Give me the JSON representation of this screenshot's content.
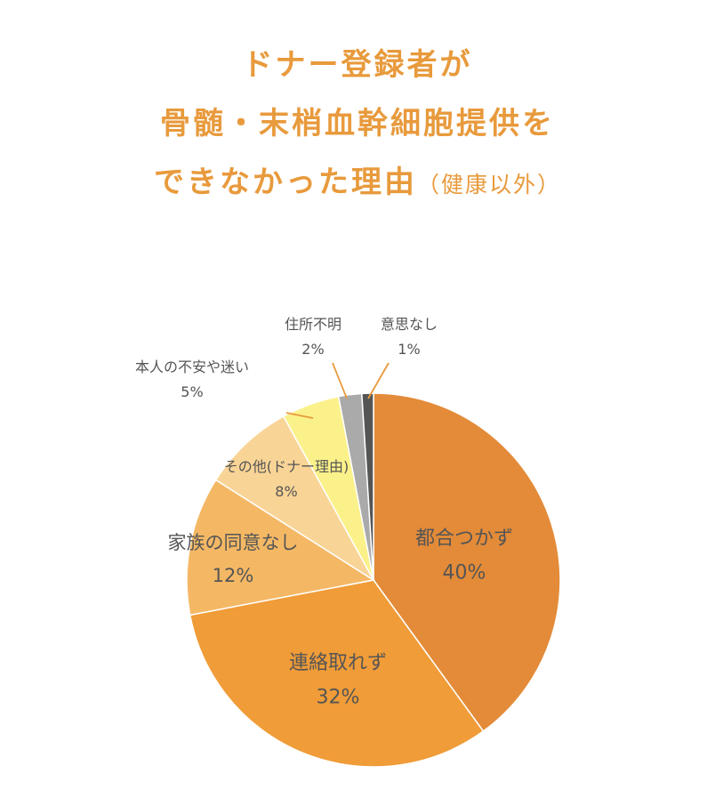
{
  "title": {
    "line1": "ドナー登録者が",
    "line2": "骨髄・末梢血幹細胞提供を",
    "line3_main": "できなかった理由",
    "line3_sub": "（健康以外）"
  },
  "chart_data": {
    "type": "pie",
    "title": "ドナー登録者が骨髄・末梢血幹細胞提供をできなかった理由（健康以外）",
    "slices": [
      {
        "label": "都合つかず",
        "value": 40,
        "value_label": "40%",
        "color": "#E38B38"
      },
      {
        "label": "連絡取れず",
        "value": 32,
        "value_label": "32%",
        "color": "#F09C38"
      },
      {
        "label": "家族の同意なし",
        "value": 12,
        "value_label": "12%",
        "color": "#F4B865"
      },
      {
        "label": "その他(ドナー理由)",
        "value": 8,
        "value_label": "8%",
        "color": "#F8D496"
      },
      {
        "label": "本人の不安や迷い",
        "value": 5,
        "value_label": "5%",
        "color": "#FBF18A"
      },
      {
        "label": "住所不明",
        "value": 2,
        "value_label": "2%",
        "color": "#AAAAAA"
      },
      {
        "label": "意思なし",
        "value": 1,
        "value_label": "1%",
        "color": "#555555"
      }
    ],
    "leader_color": "#E89A3C"
  }
}
